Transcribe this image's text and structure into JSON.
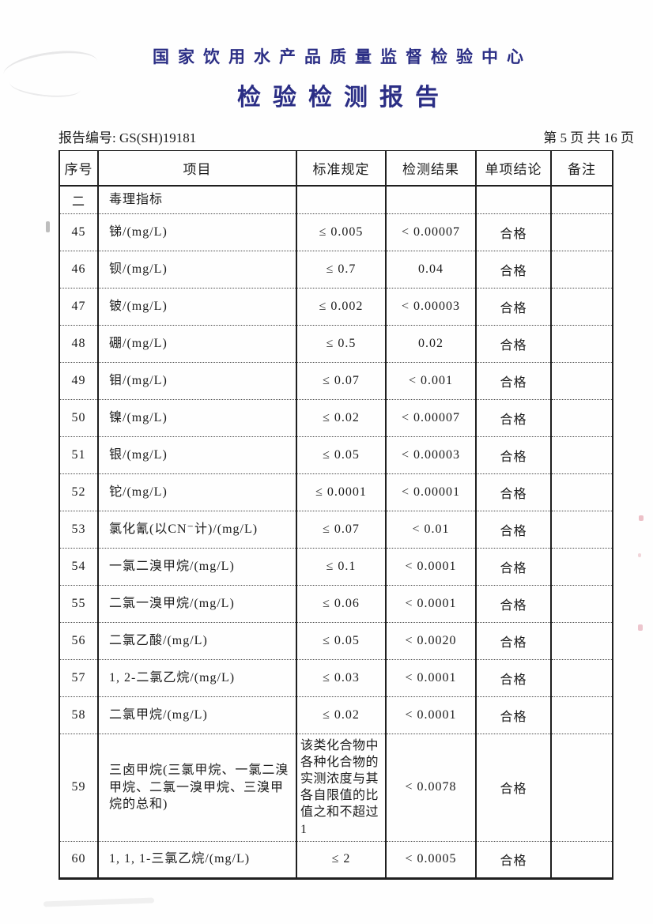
{
  "header": {
    "org_name": "国家饮用水产品质量监督检验中心",
    "title": "检验检测报告",
    "report_no": "报告编号: GS(SH)19181",
    "page_info": "第 5 页 共 16 页"
  },
  "table": {
    "columns": [
      "序号",
      "项目",
      "标准规定",
      "检测结果",
      "单项结论",
      "备注"
    ],
    "rows": [
      {
        "no": "二",
        "item": "毒理指标",
        "standard": "",
        "result": "",
        "conclusion": "",
        "remark": "",
        "section": true
      },
      {
        "no": "45",
        "item": "锑/(mg/L)",
        "standard": "≤ 0.005",
        "result": "< 0.00007",
        "conclusion": "合格",
        "remark": ""
      },
      {
        "no": "46",
        "item": "钡/(mg/L)",
        "standard": "≤ 0.7",
        "result": "0.04",
        "conclusion": "合格",
        "remark": ""
      },
      {
        "no": "47",
        "item": "铍/(mg/L)",
        "standard": "≤ 0.002",
        "result": "< 0.00003",
        "conclusion": "合格",
        "remark": ""
      },
      {
        "no": "48",
        "item": "硼/(mg/L)",
        "standard": "≤ 0.5",
        "result": "0.02",
        "conclusion": "合格",
        "remark": ""
      },
      {
        "no": "49",
        "item": "钼/(mg/L)",
        "standard": "≤ 0.07",
        "result": "< 0.001",
        "conclusion": "合格",
        "remark": ""
      },
      {
        "no": "50",
        "item": "镍/(mg/L)",
        "standard": "≤ 0.02",
        "result": "< 0.00007",
        "conclusion": "合格",
        "remark": ""
      },
      {
        "no": "51",
        "item": "银/(mg/L)",
        "standard": "≤ 0.05",
        "result": "< 0.00003",
        "conclusion": "合格",
        "remark": ""
      },
      {
        "no": "52",
        "item": "铊/(mg/L)",
        "standard": "≤ 0.0001",
        "result": "< 0.00001",
        "conclusion": "合格",
        "remark": ""
      },
      {
        "no": "53",
        "item": "氯化氰(以CN⁻计)/(mg/L)",
        "standard": "≤ 0.07",
        "result": "< 0.01",
        "conclusion": "合格",
        "remark": ""
      },
      {
        "no": "54",
        "item": "一氯二溴甲烷/(mg/L)",
        "standard": "≤ 0.1",
        "result": "< 0.0001",
        "conclusion": "合格",
        "remark": ""
      },
      {
        "no": "55",
        "item": "二氯一溴甲烷/(mg/L)",
        "standard": "≤ 0.06",
        "result": "< 0.0001",
        "conclusion": "合格",
        "remark": ""
      },
      {
        "no": "56",
        "item": "二氯乙酸/(mg/L)",
        "standard": "≤ 0.05",
        "result": "< 0.0020",
        "conclusion": "合格",
        "remark": ""
      },
      {
        "no": "57",
        "item": "1, 2-二氯乙烷/(mg/L)",
        "standard": "≤ 0.03",
        "result": "< 0.0001",
        "conclusion": "合格",
        "remark": ""
      },
      {
        "no": "58",
        "item": "二氯甲烷/(mg/L)",
        "standard": "≤ 0.02",
        "result": "< 0.0001",
        "conclusion": "合格",
        "remark": ""
      },
      {
        "no": "59",
        "item": "三卤甲烷(三氯甲烷、一氯二溴甲烷、二氯一溴甲烷、三溴甲烷的总和)",
        "standard": "该类化合物中各种化合物的实测浓度与其各自限值的比值之和不超过1",
        "result": "< 0.0078",
        "conclusion": "合格",
        "remark": ""
      },
      {
        "no": "60",
        "item": "1, 1, 1-三氯乙烷/(mg/L)",
        "standard": "≤ 2",
        "result": "< 0.0005",
        "conclusion": "合格",
        "remark": ""
      }
    ]
  }
}
